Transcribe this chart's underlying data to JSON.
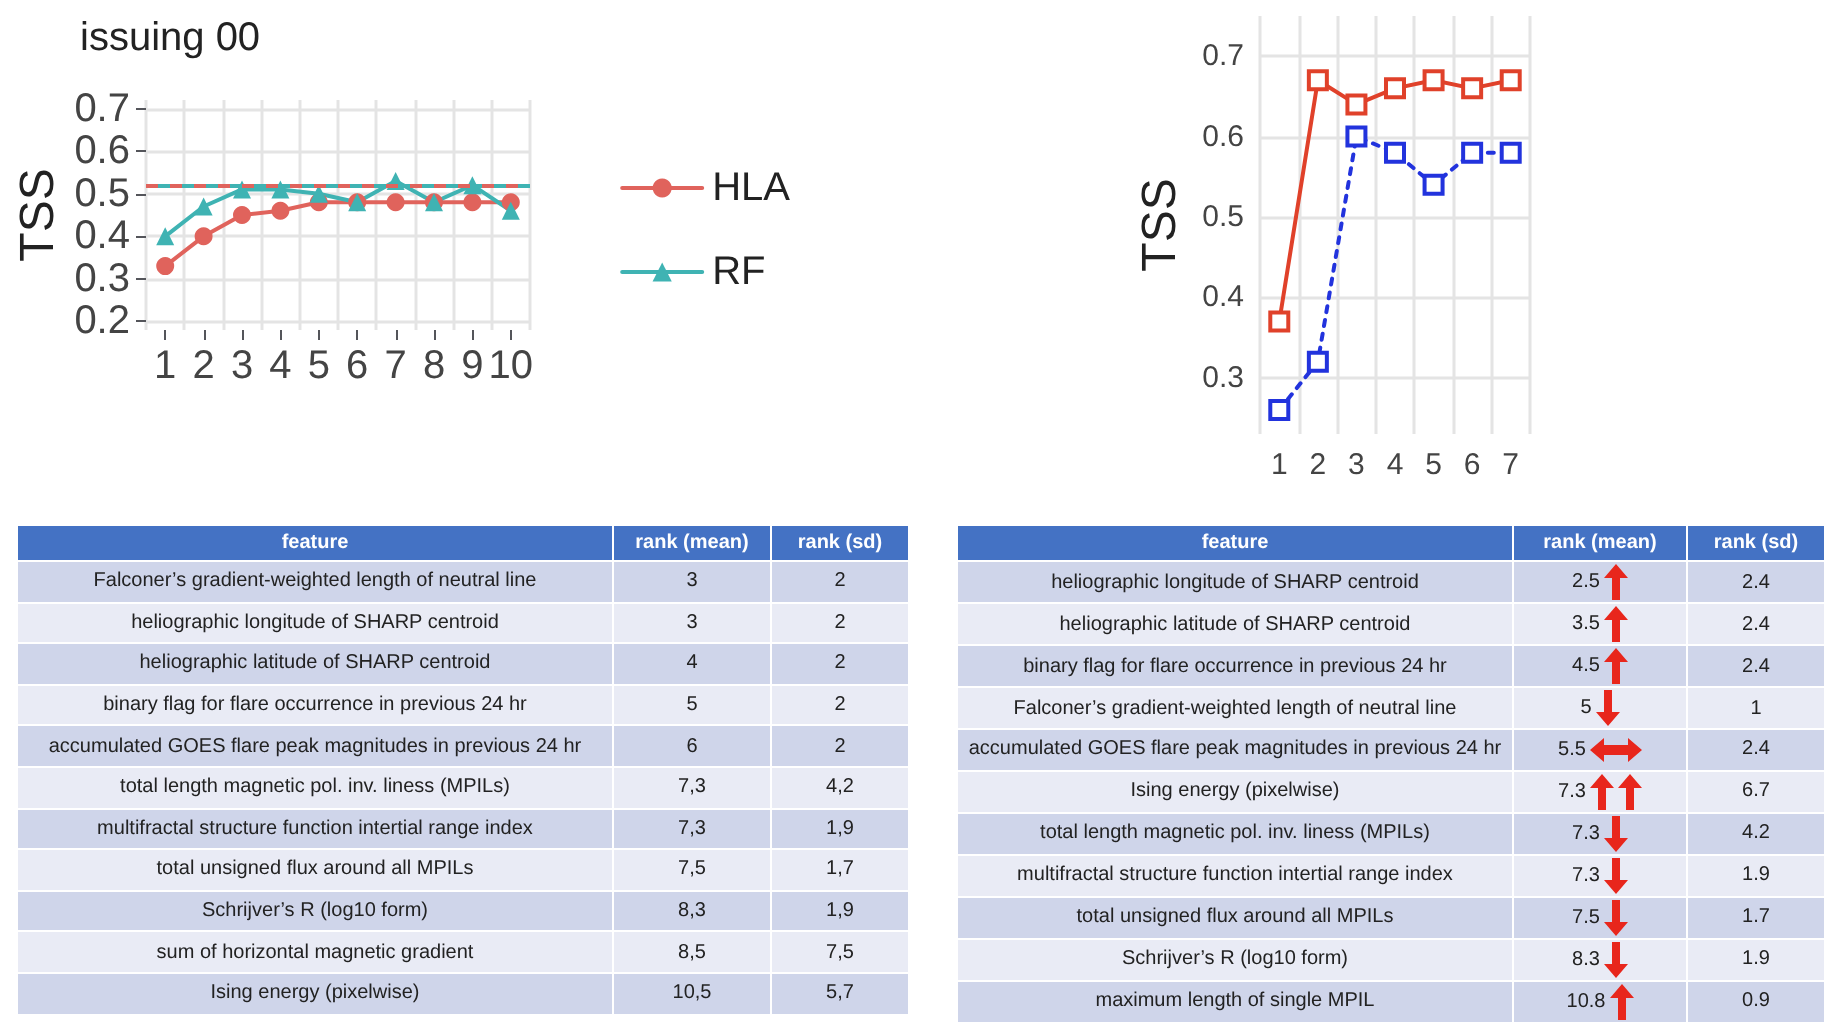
{
  "chart_data": [
    {
      "type": "line",
      "title": "issuing 00",
      "ylabel": "TSS",
      "categories": [
        "1",
        "2",
        "3",
        "4",
        "5",
        "6",
        "7",
        "8",
        "9",
        "10"
      ],
      "series": [
        {
          "name": "HLA",
          "color": "#e0635c",
          "marker": "circle",
          "values": [
            0.33,
            0.4,
            0.45,
            0.46,
            0.48,
            0.48,
            0.48,
            0.48,
            0.48,
            0.48
          ]
        },
        {
          "name": "RF",
          "color": "#3fb3b3",
          "marker": "triangle",
          "values": [
            0.4,
            0.47,
            0.51,
            0.51,
            0.5,
            0.48,
            0.53,
            0.48,
            0.52,
            0.46
          ]
        }
      ],
      "ref_lines": [
        {
          "axis": "y",
          "value": 0.52,
          "color": "#e0635c",
          "line_style": "dashed"
        },
        {
          "axis": "y",
          "value": 0.52,
          "color": "#3fb3b3",
          "line_style": "dashed"
        }
      ],
      "ylim": [
        0.18,
        0.72
      ],
      "yticks": [
        0.2,
        0.3,
        0.4,
        0.5,
        0.6,
        0.7
      ],
      "grid": true,
      "legend": "right",
      "line_style": "solid"
    },
    {
      "type": "line",
      "ylabel": "TSS",
      "categories": [
        "1",
        "2",
        "3",
        "4",
        "5",
        "6",
        "7"
      ],
      "series": [
        {
          "color": "#e0412a",
          "line_style": "solid",
          "values": [
            0.37,
            0.67,
            0.64,
            0.66,
            0.67,
            0.66,
            0.67
          ]
        },
        {
          "color": "#2233dd",
          "line_style": "dotted",
          "values": [
            0.26,
            0.32,
            0.6,
            0.58,
            0.54,
            0.58,
            0.58
          ]
        }
      ],
      "ylim": [
        0.23,
        0.75
      ],
      "yticks": [
        0.3,
        0.4,
        0.5,
        0.6,
        0.7
      ],
      "grid": true,
      "legend": false,
      "marker": "square"
    },
    {
      "type": "other",
      "xlabel": "feature",
      "categories": [
        "Falconer’s gradient-weighted length of neutral line",
        "heliographic longitude of SHARP centroid",
        "heliographic latitude of SHARP centroid",
        "binary flag for flare occurrence in previous 24 hr",
        "accumulated GOES flare peak magnitudes in previous 24 hr",
        "total length magnetic pol. inv. liness (MPILs)",
        "multifractal structure function intertial range index",
        "total unsigned flux around all MPILs",
        "Schrijver’s R (log10 form)",
        "sum of horizontal magnetic gradient",
        "Ising energy (pixelwise)"
      ],
      "series": [
        {
          "name": "rank (mean)",
          "colors": [
            "#cfd5ea",
            "#e9ebf5",
            "#cfd5ea",
            "#e9ebf5",
            "#cfd5ea",
            "#e9ebf5",
            "#cfd5ea",
            "#e9ebf5",
            "#cfd5ea",
            "#e9ebf5",
            "#cfd5ea"
          ],
          "values": [
            3,
            3,
            4,
            5,
            6,
            7.3,
            7.3,
            7.5,
            8.3,
            8.5,
            10.5
          ],
          "value_labels": [
            "3",
            "3",
            "4",
            "5",
            "6",
            "7,3",
            "7,3",
            "7,5",
            "8,3",
            "8,5",
            "10,5"
          ]
        },
        {
          "name": "rank (sd)",
          "colors": [
            "#cfd5ea",
            "#e9ebf5",
            "#cfd5ea",
            "#e9ebf5",
            "#cfd5ea",
            "#e9ebf5",
            "#cfd5ea",
            "#e9ebf5",
            "#cfd5ea",
            "#e9ebf5",
            "#cfd5ea"
          ],
          "values": [
            2,
            2,
            2,
            2,
            2,
            4.2,
            1.9,
            1.7,
            1.9,
            7.5,
            5.7
          ],
          "value_labels": [
            "2",
            "2",
            "2",
            "2",
            "2",
            "4,2",
            "1,9",
            "1,7",
            "1,9",
            "7,5",
            "5,7"
          ]
        }
      ]
    },
    {
      "type": "other",
      "xlabel": "feature",
      "data_labels": true,
      "categories": [
        "heliographic longitude of SHARP centroid",
        "heliographic latitude of SHARP centroid",
        "binary flag for flare occurrence in previous 24 hr",
        "Falconer’s gradient-weighted length of neutral line",
        "accumulated GOES flare peak magnitudes in previous 24 hr",
        "Ising energy (pixelwise)",
        "total length magnetic pol. inv. liness (MPILs)",
        "multifractal structure function intertial range index",
        "total unsigned flux around all MPILs",
        "Schrijver’s R (log10 form)",
        "maximum length of single MPIL"
      ],
      "series": [
        {
          "name": "rank (mean)",
          "colors": [
            "#cfd5ea",
            "#e9ebf5",
            "#cfd5ea",
            "#e9ebf5",
            "#cfd5ea",
            "#e9ebf5",
            "#cfd5ea",
            "#e9ebf5",
            "#cfd5ea",
            "#e9ebf5",
            "#cfd5ea"
          ],
          "values": [
            2.5,
            3.5,
            4.5,
            5,
            5.5,
            7.3,
            7.3,
            7.3,
            7.5,
            8.3,
            10.8
          ]
        },
        {
          "name": "rank (sd)",
          "colors": [
            "#cfd5ea",
            "#e9ebf5",
            "#cfd5ea",
            "#e9ebf5",
            "#cfd5ea",
            "#e9ebf5",
            "#cfd5ea",
            "#e9ebf5",
            "#cfd5ea",
            "#e9ebf5",
            "#cfd5ea"
          ],
          "values": [
            2.4,
            2.4,
            2.4,
            1,
            2.4,
            6.7,
            4.2,
            1.9,
            1.7,
            1.9,
            0.9
          ]
        }
      ]
    }
  ]
}
